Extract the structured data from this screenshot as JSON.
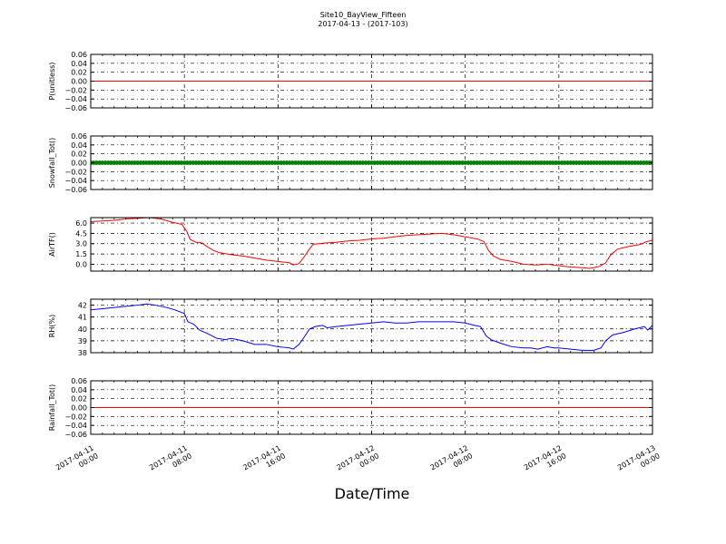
{
  "title": {
    "line1": "Site10_BayView_Fifteen",
    "line2": "2017-04-13 - (2017-103)"
  },
  "chart_data": {
    "type": "line",
    "xlabel": "Date/Time",
    "x_range_hours": [
      0,
      48
    ],
    "x_ticks": [
      {
        "hours": 0,
        "line1": "2017-04-11",
        "line2": "00:00"
      },
      {
        "hours": 8,
        "line1": "2017-04-11",
        "line2": "08:00"
      },
      {
        "hours": 16,
        "line1": "2017-04-11",
        "line2": "16:00"
      },
      {
        "hours": 24,
        "line1": "2017-04-12",
        "line2": "00:00"
      },
      {
        "hours": 32,
        "line1": "2017-04-12",
        "line2": "08:00"
      },
      {
        "hours": 40,
        "line1": "2017-04-12",
        "line2": "16:00"
      },
      {
        "hours": 48,
        "line1": "2017-04-13",
        "line2": "00:00"
      }
    ],
    "grid": true,
    "panels": [
      {
        "ylabel": "P(unitless)",
        "ylim": [
          -0.06,
          0.06
        ],
        "yticks": [
          0.06,
          0.04,
          0.02,
          0.0,
          -0.02,
          -0.04,
          -0.06
        ],
        "ytick_labels": [
          "0.06",
          "0.04",
          "0.02",
          "0.00",
          "−0.02",
          "−0.04",
          "−0.06"
        ],
        "color": "#ff0000",
        "style": "line",
        "series": {
          "points": [
            [
              0,
              0
            ],
            [
              48,
              0
            ]
          ]
        }
      },
      {
        "ylabel": "Snowfall_Tot()",
        "ylim": [
          -0.06,
          0.06
        ],
        "yticks": [
          0.06,
          0.04,
          0.02,
          0.0,
          -0.02,
          -0.04,
          -0.06
        ],
        "ytick_labels": [
          "0.06",
          "0.04",
          "0.02",
          "0.00",
          "−0.02",
          "−0.04",
          "−0.06"
        ],
        "color": "#008000",
        "style": "markers",
        "series": {
          "constant": 0,
          "interval_hours": 0.25
        }
      },
      {
        "ylabel": "AirTF()",
        "ylim": [
          -1.0,
          6.8
        ],
        "yticks": [
          6.0,
          4.5,
          3.0,
          1.5,
          0.0
        ],
        "ytick_labels": [
          "6.0",
          "4.5",
          "3.0",
          "1.5",
          "0.0"
        ],
        "color": "#ff0000",
        "style": "line",
        "series": {
          "points": [
            [
              0,
              6.2
            ],
            [
              1,
              6.3
            ],
            [
              2,
              6.4
            ],
            [
              3,
              6.6
            ],
            [
              4,
              6.7
            ],
            [
              5,
              6.8
            ],
            [
              6,
              6.6
            ],
            [
              7,
              6.1
            ],
            [
              7.8,
              5.8
            ],
            [
              8.2,
              4.8
            ],
            [
              8.5,
              3.6
            ],
            [
              9,
              3.2
            ],
            [
              9.5,
              3.1
            ],
            [
              10,
              2.5
            ],
            [
              10.5,
              2.0
            ],
            [
              11,
              1.7
            ],
            [
              12,
              1.4
            ],
            [
              13,
              1.2
            ],
            [
              14,
              0.9
            ],
            [
              15,
              0.6
            ],
            [
              16,
              0.4
            ],
            [
              17,
              0.2
            ],
            [
              17.3,
              -0.1
            ],
            [
              17.8,
              0.1
            ],
            [
              18.2,
              1.0
            ],
            [
              18.6,
              2.0
            ],
            [
              19,
              2.9
            ],
            [
              19.5,
              3.0
            ],
            [
              20,
              3.1
            ],
            [
              21,
              3.2
            ],
            [
              22,
              3.4
            ],
            [
              23,
              3.5
            ],
            [
              24,
              3.7
            ],
            [
              25,
              3.8
            ],
            [
              26,
              4.0
            ],
            [
              27,
              4.2
            ],
            [
              28,
              4.3
            ],
            [
              29,
              4.4
            ],
            [
              30,
              4.5
            ],
            [
              31,
              4.3
            ],
            [
              32,
              4.0
            ],
            [
              33,
              3.7
            ],
            [
              33.6,
              3.3
            ],
            [
              34,
              2.0
            ],
            [
              34.4,
              1.2
            ],
            [
              35,
              0.7
            ],
            [
              36,
              0.4
            ],
            [
              37,
              0.0
            ],
            [
              38,
              -0.1
            ],
            [
              39,
              0.0
            ],
            [
              40,
              -0.2
            ],
            [
              41,
              -0.4
            ],
            [
              42,
              -0.5
            ],
            [
              42.6,
              -0.6
            ],
            [
              43,
              -0.5
            ],
            [
              43.5,
              -0.3
            ],
            [
              44,
              0.2
            ],
            [
              44.4,
              1.3
            ],
            [
              45,
              2.2
            ],
            [
              46,
              2.6
            ],
            [
              47,
              2.9
            ],
            [
              47.5,
              3.3
            ],
            [
              48,
              3.5
            ]
          ]
        }
      },
      {
        "ylabel": "RH(%)",
        "ylim": [
          38,
          42.5
        ],
        "yticks": [
          42,
          41,
          40,
          39,
          38
        ],
        "ytick_labels": [
          "42",
          "41",
          "40",
          "39",
          "38"
        ],
        "color": "#0000ff",
        "style": "line",
        "series": {
          "points": [
            [
              0,
              41.6
            ],
            [
              1,
              41.7
            ],
            [
              2,
              41.8
            ],
            [
              3,
              41.9
            ],
            [
              4,
              42.0
            ],
            [
              4.8,
              42.1
            ],
            [
              5.5,
              42.0
            ],
            [
              6.5,
              41.8
            ],
            [
              7.2,
              41.6
            ],
            [
              8.0,
              41.3
            ],
            [
              8.3,
              40.6
            ],
            [
              8.8,
              40.4
            ],
            [
              9.3,
              39.9
            ],
            [
              10,
              39.6
            ],
            [
              10.8,
              39.2
            ],
            [
              11.5,
              39.1
            ],
            [
              12.0,
              39.2
            ],
            [
              13,
              39.0
            ],
            [
              14,
              38.7
            ],
            [
              15,
              38.7
            ],
            [
              16,
              38.5
            ],
            [
              17,
              38.4
            ],
            [
              17.3,
              38.3
            ],
            [
              17.8,
              38.7
            ],
            [
              18.3,
              39.4
            ],
            [
              18.7,
              40.0
            ],
            [
              19.2,
              40.2
            ],
            [
              19.8,
              40.3
            ],
            [
              20.2,
              40.1
            ],
            [
              21,
              40.2
            ],
            [
              22,
              40.3
            ],
            [
              23,
              40.4
            ],
            [
              24,
              40.5
            ],
            [
              25,
              40.6
            ],
            [
              26,
              40.5
            ],
            [
              27,
              40.5
            ],
            [
              28,
              40.6
            ],
            [
              29,
              40.6
            ],
            [
              30,
              40.6
            ],
            [
              31,
              40.6
            ],
            [
              32,
              40.5
            ],
            [
              32.8,
              40.3
            ],
            [
              33.3,
              40.2
            ],
            [
              33.8,
              39.4
            ],
            [
              34.2,
              39.1
            ],
            [
              35,
              38.8
            ],
            [
              36,
              38.5
            ],
            [
              37,
              38.4
            ],
            [
              37.6,
              38.4
            ],
            [
              38.2,
              38.3
            ],
            [
              39,
              38.5
            ],
            [
              39.6,
              38.4
            ],
            [
              40,
              38.4
            ],
            [
              41,
              38.3
            ],
            [
              42,
              38.2
            ],
            [
              43,
              38.2
            ],
            [
              43.6,
              38.4
            ],
            [
              44,
              39.0
            ],
            [
              44.6,
              39.5
            ],
            [
              45.5,
              39.7
            ],
            [
              46.5,
              40.0
            ],
            [
              47.3,
              40.2
            ],
            [
              47.6,
              39.9
            ],
            [
              48,
              40.3
            ]
          ]
        }
      },
      {
        "ylabel": "Rainfall_Tot()",
        "ylim": [
          -0.06,
          0.06
        ],
        "yticks": [
          0.06,
          0.04,
          0.02,
          0.0,
          -0.02,
          -0.04,
          -0.06
        ],
        "ytick_labels": [
          "0.06",
          "0.04",
          "0.02",
          "0.00",
          "−0.02",
          "−0.04",
          "−0.06"
        ],
        "color": "#ff0000",
        "style": "line",
        "series": {
          "points": [
            [
              0,
              0
            ],
            [
              48,
              0
            ]
          ]
        }
      }
    ]
  }
}
